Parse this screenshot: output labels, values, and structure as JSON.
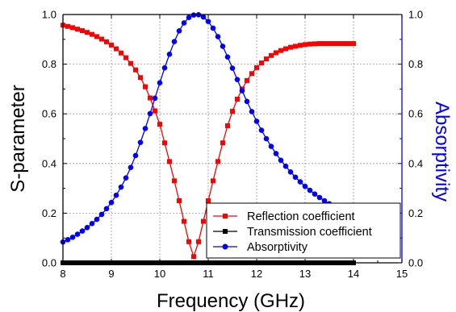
{
  "chart_data": {
    "type": "line",
    "xlabel": "Frequency (GHz)",
    "ylabel": "S-parameter",
    "y2label": "Absorptivity",
    "xlim": [
      8,
      15
    ],
    "ylim": [
      0,
      1.0
    ],
    "y2lim": [
      0,
      1.0
    ],
    "xticks": [
      "8",
      "9",
      "10",
      "11",
      "12",
      "13",
      "14",
      "15"
    ],
    "yticks": [
      "0.0",
      "0.2",
      "0.4",
      "0.6",
      "0.8",
      "1.0"
    ],
    "y2ticks": [
      "0.0",
      "0.2",
      "0.4",
      "0.6",
      "0.8",
      "1.0"
    ],
    "grid": true,
    "legend_position": "bottom-right",
    "colors": {
      "reflection": "#ff0000",
      "transmission": "#000000",
      "absorptivity": "#0000ff",
      "right_axis": "#0000ff"
    },
    "series": [
      {
        "name": "Reflection coefficient",
        "marker": "square",
        "axis": "left",
        "x": [
          8.0,
          8.1,
          8.2,
          8.3,
          8.4,
          8.5,
          8.6,
          8.7,
          8.8,
          8.9,
          9.0,
          9.1,
          9.2,
          9.3,
          9.4,
          9.5,
          9.6,
          9.7,
          9.8,
          9.9,
          10.0,
          10.1,
          10.2,
          10.3,
          10.4,
          10.5,
          10.6,
          10.7,
          10.8,
          10.9,
          11.0,
          11.1,
          11.2,
          11.3,
          11.4,
          11.5,
          11.6,
          11.7,
          11.8,
          11.9,
          12.0,
          12.1,
          12.2,
          12.3,
          12.4,
          12.5,
          12.6,
          12.7,
          12.8,
          12.9,
          13.0,
          13.1,
          13.2,
          13.3,
          13.4,
          13.5,
          13.6,
          13.7,
          13.8,
          13.9,
          14.0
        ],
        "y": [
          0.957,
          0.952,
          0.947,
          0.941,
          0.935,
          0.928,
          0.92,
          0.911,
          0.901,
          0.89,
          0.877,
          0.862,
          0.845,
          0.826,
          0.803,
          0.777,
          0.746,
          0.709,
          0.664,
          0.612,
          0.558,
          0.483,
          0.408,
          0.33,
          0.25,
          0.167,
          0.085,
          0.025,
          0.085,
          0.167,
          0.25,
          0.33,
          0.408,
          0.483,
          0.552,
          0.61,
          0.659,
          0.7,
          0.734,
          0.762,
          0.786,
          0.805,
          0.821,
          0.835,
          0.846,
          0.855,
          0.862,
          0.868,
          0.872,
          0.876,
          0.879,
          0.881,
          0.882,
          0.883,
          0.883,
          0.883,
          0.883,
          0.883,
          0.883,
          0.883,
          0.883
        ]
      },
      {
        "name": "Transmission coefficient",
        "marker": "square",
        "axis": "left",
        "x": [
          8.0,
          14.0
        ],
        "y": [
          0.0,
          0.0
        ]
      },
      {
        "name": "Absorptivity",
        "marker": "circle",
        "axis": "right",
        "x": [
          8.0,
          8.1,
          8.2,
          8.3,
          8.4,
          8.5,
          8.6,
          8.7,
          8.8,
          8.9,
          9.0,
          9.1,
          9.2,
          9.3,
          9.4,
          9.5,
          9.6,
          9.7,
          9.8,
          9.9,
          10.0,
          10.1,
          10.2,
          10.3,
          10.4,
          10.5,
          10.6,
          10.7,
          10.8,
          10.9,
          11.0,
          11.1,
          11.2,
          11.3,
          11.4,
          11.5,
          11.6,
          11.7,
          11.8,
          11.9,
          12.0,
          12.1,
          12.2,
          12.3,
          12.4,
          12.5,
          12.6,
          12.7,
          12.8,
          12.9,
          13.0,
          13.1,
          13.2,
          13.3,
          13.4,
          13.5,
          13.6,
          13.7,
          13.8,
          13.9,
          14.0
        ],
        "y": [
          0.084,
          0.093,
          0.103,
          0.115,
          0.128,
          0.142,
          0.158,
          0.175,
          0.195,
          0.218,
          0.243,
          0.272,
          0.305,
          0.342,
          0.384,
          0.432,
          0.485,
          0.541,
          0.601,
          0.663,
          0.725,
          0.785,
          0.84,
          0.891,
          0.934,
          0.966,
          0.988,
          0.998,
          0.999,
          0.99,
          0.972,
          0.945,
          0.911,
          0.872,
          0.829,
          0.784,
          0.738,
          0.693,
          0.65,
          0.609,
          0.57,
          0.534,
          0.5,
          0.469,
          0.44,
          0.413,
          0.389,
          0.366,
          0.345,
          0.326,
          0.308,
          0.292,
          0.277,
          0.263,
          0.25,
          0.238,
          0.227,
          0.217,
          0.208,
          0.199,
          0.191
        ]
      }
    ]
  }
}
